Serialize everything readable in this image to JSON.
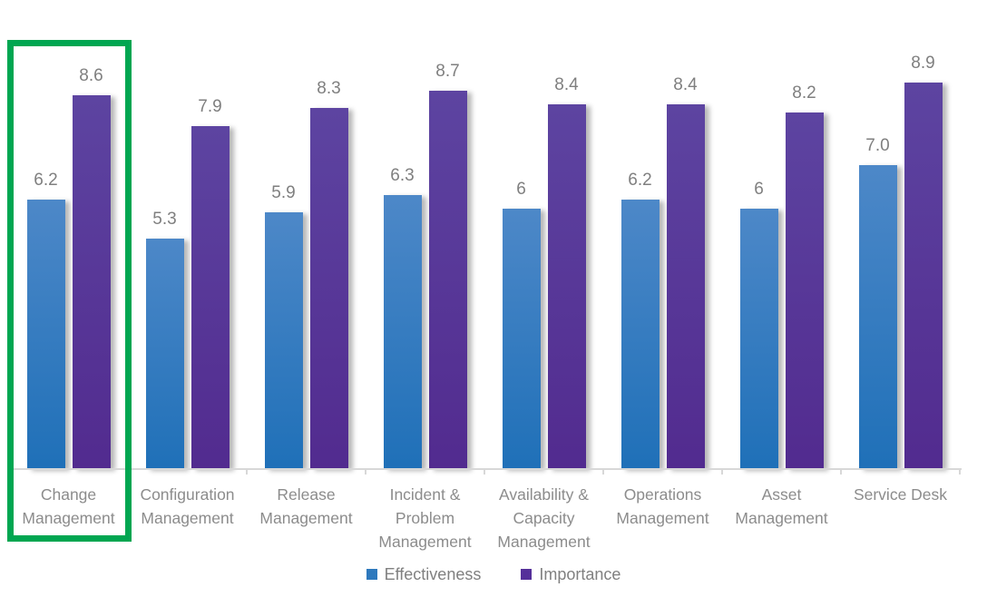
{
  "chart_data": {
    "type": "bar",
    "categories": [
      "Change Management",
      "Configuration Management",
      "Release Management",
      "Incident & Problem Management",
      "Availability & Capacity Management",
      "Operations Management",
      "Asset Management",
      "Service Desk"
    ],
    "series": [
      {
        "name": "Effectiveness",
        "values": [
          6.2,
          5.3,
          5.9,
          6.3,
          6,
          6.2,
          6,
          7.0
        ],
        "value_labels": [
          "6.2",
          "5.3",
          "5.9",
          "6.3",
          "6",
          "6.2",
          "6",
          "7.0"
        ],
        "color_top": "#4d88c8",
        "color_bottom": "#1f70b8",
        "legend_color": "#2e79bd"
      },
      {
        "name": "Importance",
        "values": [
          8.6,
          7.9,
          8.3,
          8.7,
          8.4,
          8.4,
          8.2,
          8.9
        ],
        "value_labels": [
          "8.6",
          "7.9",
          "8.3",
          "8.7",
          "8.4",
          "8.4",
          "8.2",
          "8.9"
        ],
        "color_top": "#5d44a1",
        "color_bottom": "#522b8f",
        "legend_color": "#55309a"
      }
    ],
    "title": "",
    "xlabel": "",
    "ylabel": "",
    "ylim": [
      0,
      10
    ],
    "grid": false,
    "legend_position": "bottom",
    "axis_color": "#d8d8d8",
    "label_color": "#7f7f7f",
    "highlight": {
      "category_index": 0,
      "color": "#00a651"
    }
  }
}
